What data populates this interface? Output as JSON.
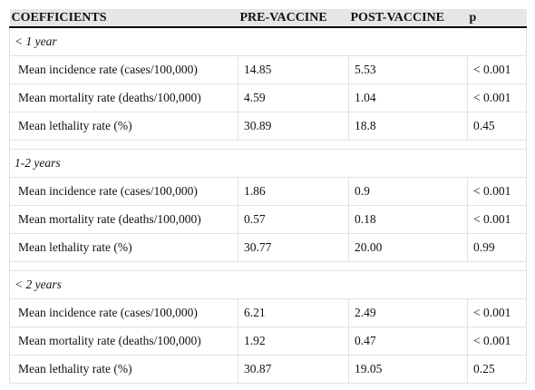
{
  "table": {
    "header": [
      "COEFFICIENTS",
      "PRE-VACCINE",
      "POST-VACCINE",
      "p"
    ],
    "sections": [
      {
        "label": "< 1 year",
        "rows": [
          [
            "Mean incidence rate (cases/100,000)",
            "14.85",
            "5.53",
            "< 0.001"
          ],
          [
            "Mean mortality rate (deaths/100,000)",
            "4.59",
            "1.04",
            "< 0.001"
          ],
          [
            "Mean lethality rate (%)",
            "30.89",
            "18.8",
            "0.45"
          ]
        ]
      },
      {
        "label": "1-2 years",
        "rows": [
          [
            "Mean incidence rate (cases/100,000)",
            "1.86",
            "0.9",
            "< 0.001"
          ],
          [
            "Mean mortality rate (deaths/100,000)",
            "0.57",
            "0.18",
            "< 0.001"
          ],
          [
            "Mean lethality rate (%)",
            "30.77",
            "20.00",
            "0.99"
          ]
        ]
      },
      {
        "label": "< 2 years",
        "rows": [
          [
            "Mean incidence rate (cases/100,000)",
            "6.21",
            "2.49",
            "< 0.001"
          ],
          [
            "Mean mortality rate (deaths/100,000)",
            "1.92",
            "0.47",
            "< 0.001"
          ],
          [
            "Mean lethality rate (%)",
            "30.87",
            "19.05",
            "0.25"
          ]
        ]
      }
    ]
  }
}
